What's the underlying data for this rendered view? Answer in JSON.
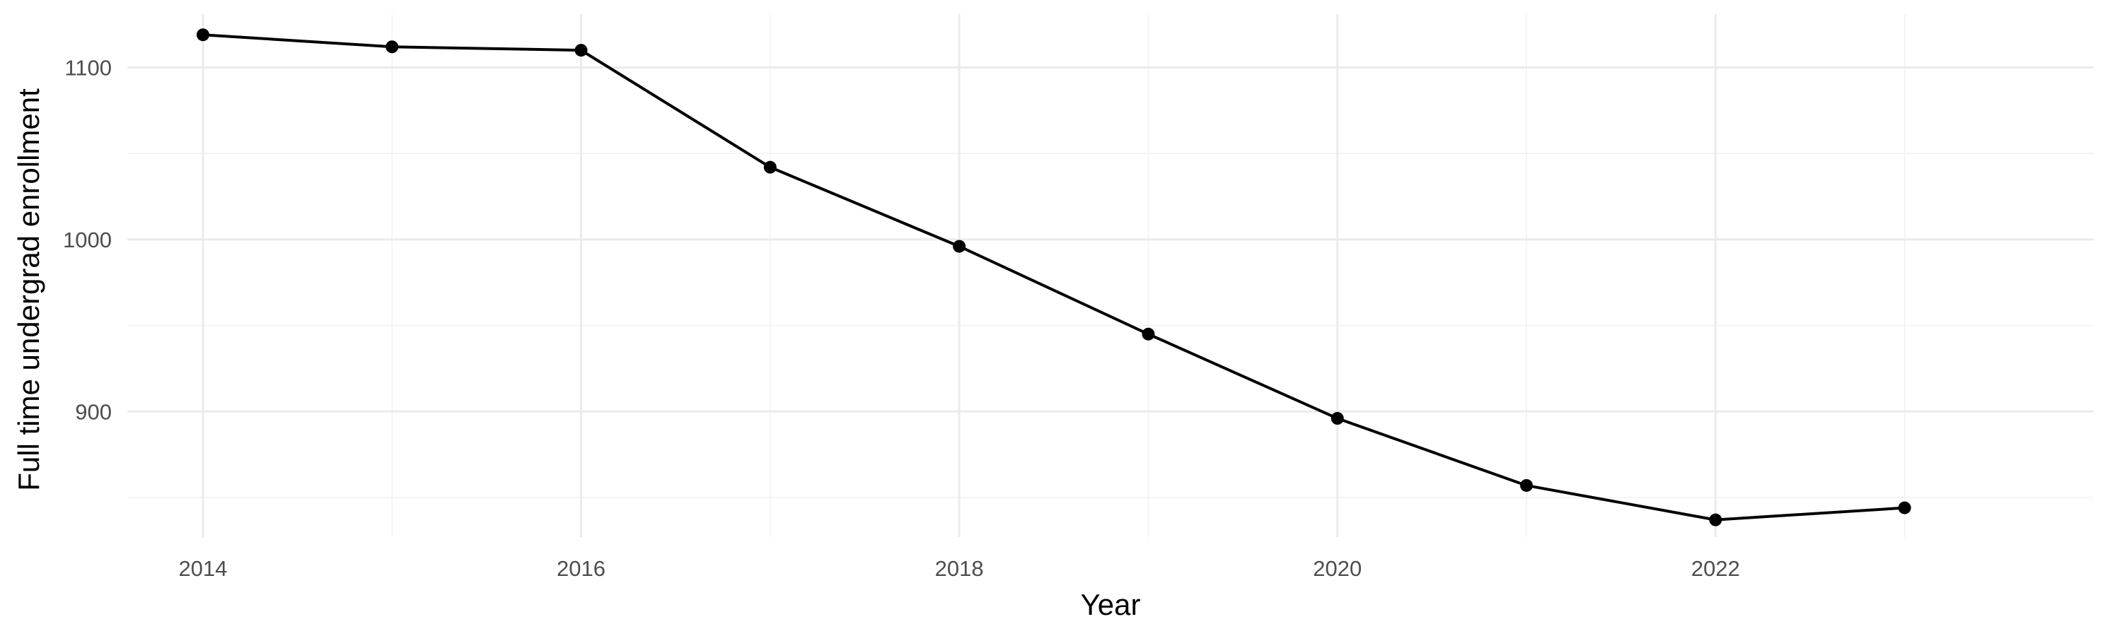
{
  "chart_data": {
    "type": "line",
    "title": "",
    "xlabel": "Year",
    "ylabel": "Full time undergrad enrollment",
    "x": [
      2014,
      2015,
      2016,
      2017,
      2018,
      2019,
      2020,
      2021,
      2022,
      2023
    ],
    "series": [
      {
        "values": [
          1119,
          1112,
          1110,
          1042,
          996,
          945,
          896,
          857,
          837,
          844
        ]
      }
    ],
    "x_ticks": [
      "2014",
      "2016",
      "2018",
      "2020",
      "2022"
    ],
    "y_ticks": [
      "900",
      "1000",
      "1100"
    ],
    "xlim": [
      2013.6,
      2024.0
    ],
    "ylim": [
      827,
      1131
    ],
    "grid": true,
    "legend": "none",
    "colors": {
      "line": "#000000",
      "point": "#000000",
      "grid_major": "#ebebeb",
      "grid_minor": "#f2f2f2",
      "tick_text": "#4d4d4d"
    }
  }
}
